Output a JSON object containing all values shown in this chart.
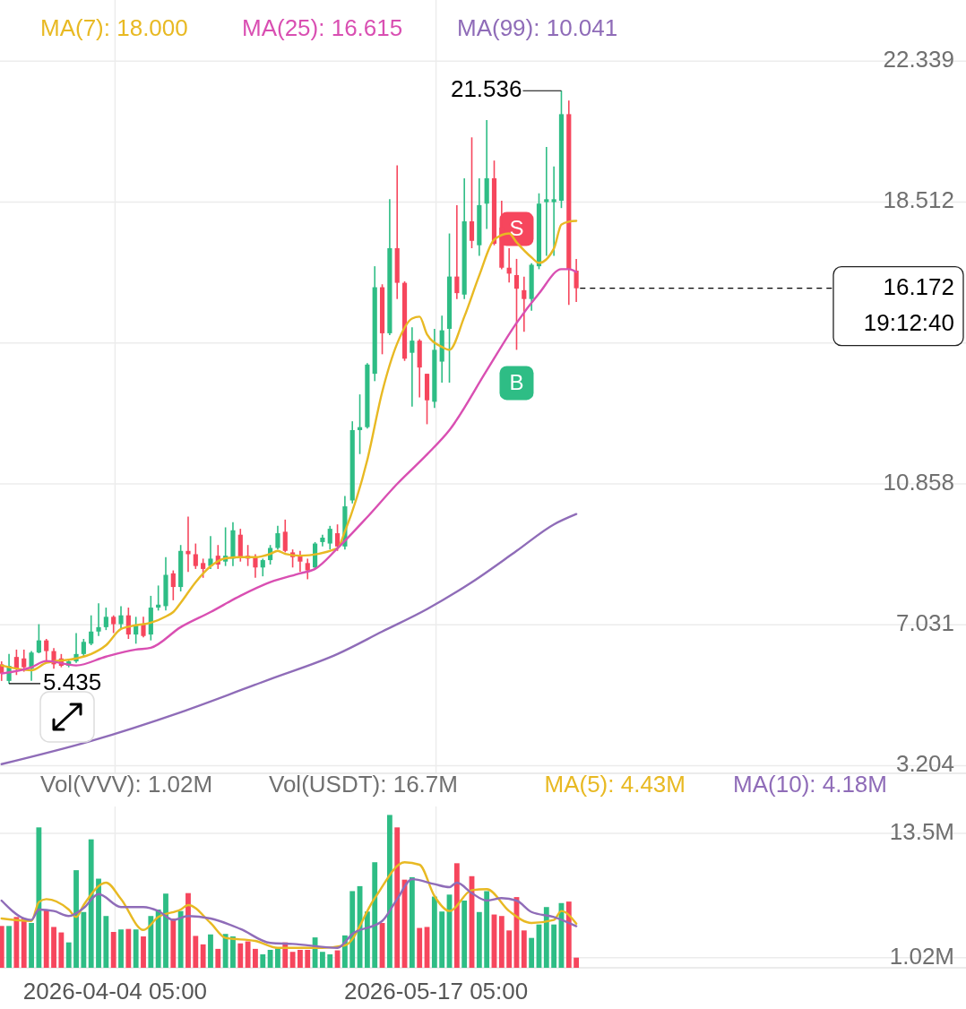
{
  "chart_data": [
    {
      "type": "candlestick",
      "x": [
        "2026-03-20",
        "2026-03-21",
        "2026-03-22",
        "2026-03-23",
        "2026-03-24",
        "2026-03-25",
        "2026-03-26",
        "2026-03-27",
        "2026-03-28",
        "2026-03-29",
        "2026-03-30",
        "2026-03-31",
        "2026-04-01",
        "2026-04-02",
        "2026-04-03",
        "2026-04-04",
        "2026-04-05",
        "2026-04-06",
        "2026-04-07",
        "2026-04-08",
        "2026-04-09",
        "2026-04-10",
        "2026-04-11",
        "2026-04-12",
        "2026-04-13",
        "2026-04-14",
        "2026-04-15",
        "2026-04-16",
        "2026-04-17",
        "2026-04-18",
        "2026-04-19",
        "2026-04-20",
        "2026-04-21",
        "2026-04-22",
        "2026-04-23",
        "2026-04-24",
        "2026-04-25",
        "2026-04-26",
        "2026-04-27",
        "2026-04-28",
        "2026-04-29",
        "2026-04-30",
        "2026-05-01",
        "2026-05-02",
        "2026-05-03",
        "2026-05-04",
        "2026-05-05",
        "2026-05-06",
        "2026-05-07",
        "2026-05-08",
        "2026-05-09",
        "2026-05-10",
        "2026-05-11",
        "2026-05-12",
        "2026-05-13",
        "2026-05-14",
        "2026-05-15",
        "2026-05-16",
        "2026-05-17",
        "2026-05-18",
        "2026-05-19",
        "2026-05-20",
        "2026-05-21",
        "2026-05-22",
        "2026-05-23",
        "2026-05-24",
        "2026-05-25",
        "2026-05-26",
        "2026-05-27",
        "2026-05-28",
        "2026-05-29",
        "2026-05-30",
        "2026-05-31",
        "2026-06-01",
        "2026-06-02",
        "2026-06-03",
        "2026-06-04",
        "2026-06-05"
      ],
      "ohlc": [
        [
          5.96,
          6.04,
          5.51,
          5.71
        ],
        [
          5.51,
          6.24,
          5.435,
          5.92
        ],
        [
          6.16,
          6.36,
          5.67,
          5.84
        ],
        [
          6.12,
          6.36,
          5.76,
          5.88
        ],
        [
          5.84,
          6.32,
          5.51,
          6.28
        ],
        [
          6.28,
          7.05,
          6.26,
          6.61
        ],
        [
          6.61,
          6.65,
          6.0,
          6.32
        ],
        [
          6.32,
          6.4,
          5.84,
          5.96
        ],
        [
          6.12,
          6.24,
          5.88,
          5.92
        ],
        [
          5.92,
          6.08,
          5.88,
          6.04
        ],
        [
          6.04,
          6.81,
          6.0,
          6.24
        ],
        [
          6.24,
          6.65,
          6.16,
          6.57
        ],
        [
          6.52,
          7.29,
          6.48,
          6.85
        ],
        [
          6.85,
          7.62,
          6.73,
          6.97
        ],
        [
          6.97,
          7.5,
          6.89,
          7.25
        ],
        [
          7.25,
          7.29,
          6.81,
          7.05
        ],
        [
          7.05,
          7.54,
          6.93,
          7.29
        ],
        [
          7.29,
          7.5,
          6.65,
          6.77
        ],
        [
          6.77,
          7.25,
          6.52,
          7.01
        ],
        [
          7.05,
          7.25,
          6.69,
          6.73
        ],
        [
          6.77,
          7.82,
          6.61,
          7.5
        ],
        [
          7.5,
          8.1,
          7.42,
          7.58
        ],
        [
          7.54,
          8.87,
          7.42,
          8.39
        ],
        [
          8.43,
          8.51,
          7.7,
          8.06
        ],
        [
          8.06,
          9.2,
          7.94,
          9.04
        ],
        [
          9.04,
          9.97,
          8.47,
          8.95
        ],
        [
          8.95,
          9.24,
          8.55,
          8.63
        ],
        [
          8.71,
          8.83,
          8.31,
          8.55
        ],
        [
          8.63,
          9.44,
          8.55,
          8.83
        ],
        [
          8.91,
          9.2,
          8.55,
          8.67
        ],
        [
          8.75,
          9.68,
          8.63,
          8.91
        ],
        [
          8.83,
          9.82,
          8.63,
          9.6
        ],
        [
          9.48,
          9.64,
          8.75,
          8.87
        ],
        [
          8.91,
          9.2,
          8.63,
          8.83
        ],
        [
          8.87,
          8.95,
          8.31,
          8.59
        ],
        [
          8.59,
          8.83,
          8.35,
          8.79
        ],
        [
          8.79,
          9.2,
          8.67,
          9.12
        ],
        [
          9.12,
          9.72,
          9.08,
          9.52
        ],
        [
          9.56,
          9.89,
          9.0,
          9.04
        ],
        [
          9.0,
          9.08,
          8.59,
          8.87
        ],
        [
          8.91,
          9.04,
          8.47,
          8.75
        ],
        [
          8.71,
          8.83,
          8.27,
          8.51
        ],
        [
          8.59,
          9.28,
          8.55,
          9.24
        ],
        [
          9.28,
          9.48,
          9.16,
          9.4
        ],
        [
          9.24,
          9.72,
          9.08,
          9.64
        ],
        [
          9.52,
          9.76,
          9.04,
          9.16
        ],
        [
          9.16,
          10.53,
          9.08,
          10.25
        ],
        [
          10.41,
          12.56,
          10.33,
          12.32
        ],
        [
          12.32,
          13.29,
          11.67,
          12.4
        ],
        [
          12.4,
          14.14,
          12.36,
          14.1
        ],
        [
          13.85,
          16.77,
          13.65,
          16.2
        ],
        [
          16.2,
          16.28,
          14.38,
          14.95
        ],
        [
          14.95,
          18.59,
          14.9,
          17.26
        ],
        [
          17.26,
          19.51,
          15.88,
          16.32
        ],
        [
          16.32,
          16.36,
          14.2,
          14.26
        ],
        [
          14.42,
          15.11,
          12.96,
          14.75
        ],
        [
          14.75,
          14.79,
          13.21,
          14.02
        ],
        [
          13.85,
          13.85,
          12.48,
          13.13
        ],
        [
          13.09,
          15.07,
          12.92,
          14.5
        ],
        [
          14.18,
          15.43,
          13.61,
          15.03
        ],
        [
          15.07,
          17.66,
          13.61,
          16.49
        ],
        [
          16.49,
          18.43,
          15.88,
          16.04
        ],
        [
          16.0,
          19.16,
          15.88,
          17.99
        ],
        [
          17.99,
          20.27,
          17.26,
          17.46
        ],
        [
          17.34,
          19.16,
          17.05,
          18.43
        ],
        [
          18.47,
          20.74,
          17.78,
          19.16
        ],
        [
          19.16,
          19.64,
          17.34,
          17.38
        ],
        [
          17.82,
          18.55,
          16.69,
          16.73
        ],
        [
          16.73,
          17.26,
          16.33,
          16.57
        ],
        [
          16.53,
          16.97,
          14.5,
          16.16
        ],
        [
          16.12,
          16.49,
          14.99,
          15.88
        ],
        [
          15.88,
          16.85,
          15.56,
          16.81
        ],
        [
          16.77,
          18.75,
          16.69,
          18.47
        ],
        [
          18.51,
          20.01,
          17.05,
          18.59
        ],
        [
          18.51,
          19.48,
          17.05,
          18.59
        ],
        [
          18.55,
          21.536,
          18.35,
          20.9
        ],
        [
          20.9,
          21.27,
          15.72,
          16.69
        ],
        [
          16.65,
          16.97,
          15.8,
          16.172
        ]
      ],
      "colors": [
        "#f6465d",
        "#2ebd85",
        "#f6465d",
        "#f6465d",
        "#2ebd85",
        "#2ebd85",
        "#f6465d",
        "#f6465d",
        "#f6465d",
        "#2ebd85",
        "#2ebd85",
        "#2ebd85",
        "#2ebd85",
        "#2ebd85",
        "#2ebd85",
        "#f6465d",
        "#2ebd85",
        "#f6465d",
        "#2ebd85",
        "#f6465d",
        "#2ebd85",
        "#2ebd85",
        "#2ebd85",
        "#f6465d",
        "#2ebd85",
        "#f6465d",
        "#f6465d",
        "#f6465d",
        "#2ebd85",
        "#f6465d",
        "#2ebd85",
        "#2ebd85",
        "#f6465d",
        "#f6465d",
        "#f6465d",
        "#2ebd85",
        "#2ebd85",
        "#2ebd85",
        "#f6465d",
        "#f6465d",
        "#f6465d",
        "#f6465d",
        "#2ebd85",
        "#2ebd85",
        "#2ebd85",
        "#f6465d",
        "#2ebd85",
        "#2ebd85",
        "#2ebd85",
        "#2ebd85",
        "#2ebd85",
        "#f6465d",
        "#2ebd85",
        "#f6465d",
        "#f6465d",
        "#2ebd85",
        "#f6465d",
        "#f6465d",
        "#2ebd85",
        "#2ebd85",
        "#2ebd85",
        "#f6465d",
        "#2ebd85",
        "#f6465d",
        "#2ebd85",
        "#2ebd85",
        "#f6465d",
        "#f6465d",
        "#f6465d",
        "#f6465d",
        "#f6465d",
        "#2ebd85",
        "#2ebd85",
        "#2ebd85",
        "#2ebd85",
        "#2ebd85",
        "#f6465d",
        "#f6465d"
      ],
      "series": [
        {
          "type": "line",
          "name": "MA(7): 18.000",
          "color": "#e8b923",
          "x": [
            "2026-03-20",
            "2026-03-24",
            "2026-03-26",
            "2026-03-30",
            "2026-04-01",
            "2026-04-03",
            "2026-04-05",
            "2026-04-07",
            "2026-04-09",
            "2026-04-11",
            "2026-04-12",
            "2026-04-13",
            "2026-04-15",
            "2026-04-17",
            "2026-04-19",
            "2026-04-21",
            "2026-04-23",
            "2026-04-25",
            "2026-04-26",
            "2026-04-27",
            "2026-04-29",
            "2026-05-04",
            "2026-05-05",
            "2026-05-08",
            "2026-05-10",
            "2026-05-12",
            "2026-05-14",
            "2026-05-15",
            "2026-05-16",
            "2026-05-18",
            "2026-05-19",
            "2026-05-21",
            "2026-05-23",
            "2026-05-25",
            "2026-05-27",
            "2026-05-28",
            "2026-05-30",
            "2026-05-31",
            "2026-06-02",
            "2026-06-03",
            "2026-06-04",
            "2026-06-05"
          ],
          "values": [
            5.93,
            5.8,
            6.0,
            6.12,
            6.24,
            6.48,
            6.92,
            7.02,
            7.09,
            7.26,
            7.38,
            7.63,
            8.19,
            8.62,
            8.84,
            8.87,
            8.87,
            8.96,
            9.04,
            8.96,
            8.91,
            9.11,
            9.57,
            11.51,
            13.36,
            14.67,
            15.35,
            15.4,
            14.92,
            14.58,
            14.5,
            15.4,
            16.52,
            17.49,
            17.66,
            17.42,
            17.01,
            16.86,
            17.25,
            17.9,
            17.98,
            18.0
          ]
        },
        {
          "type": "line",
          "name": "MA(25): 16.615",
          "color": "#d94fb2",
          "x": [
            "2026-03-20",
            "2026-03-24",
            "2026-03-26",
            "2026-03-30",
            "2026-04-03",
            "2026-04-07",
            "2026-04-09",
            "2026-04-13",
            "2026-04-17",
            "2026-04-21",
            "2026-04-25",
            "2026-04-29",
            "2026-05-01",
            "2026-05-04",
            "2026-05-08",
            "2026-05-12",
            "2026-05-16",
            "2026-05-19",
            "2026-05-24",
            "2026-05-28",
            "2026-05-31",
            "2026-06-03",
            "2026-06-04",
            "2026-06-05"
          ],
          "values": [
            5.71,
            5.88,
            6.05,
            5.93,
            6.17,
            6.36,
            6.41,
            6.97,
            7.38,
            7.82,
            8.19,
            8.43,
            8.55,
            9.11,
            9.96,
            10.86,
            11.66,
            12.32,
            13.94,
            15.23,
            16.03,
            16.69,
            16.69,
            16.615
          ]
        },
        {
          "type": "line",
          "name": "MA(99): 10.041",
          "color": "#8f6cb8",
          "x": [
            "2026-03-20",
            "2026-04-01",
            "2026-04-13",
            "2026-04-25",
            "2026-05-04",
            "2026-05-10",
            "2026-05-16",
            "2026-05-22",
            "2026-05-28",
            "2026-06-02",
            "2026-06-05"
          ],
          "values": [
            3.25,
            3.88,
            4.66,
            5.56,
            6.24,
            6.85,
            7.46,
            8.19,
            9.04,
            9.76,
            10.041
          ]
        }
      ],
      "xlim": [
        "2026-03-19T19:00",
        "2026-07-27T05:00"
      ],
      "ylim": [
        3.0,
        24.0
      ],
      "yticks": [
        3.204,
        7.031,
        10.858,
        {
          "value": 14.685,
          "label": null
        },
        18.512,
        22.339
      ],
      "xticks": [
        {
          "value": "2026-04-04T05:00",
          "label": null
        },
        {
          "value": "2026-05-17T05:00",
          "label": null
        }
      ],
      "tick_labels": "y",
      "grid": true,
      "legend": "top left",
      "ref_lines": [
        {
          "axis": "y",
          "value": 16.172,
          "label": "16.172",
          "line_style": "dashed",
          "color": "#000000"
        }
      ],
      "annotations": [
        {
          "text": "21.536",
          "x": "2026-06-03",
          "y": 21.536
        },
        {
          "text": "5.435",
          "x": "2026-03-21",
          "y": 5.435
        },
        {
          "text": "S",
          "x": "2026-05-28",
          "y": 17.78
        },
        {
          "text": "B",
          "x": "2026-05-28",
          "y": 13.6
        },
        "19:12:40"
      ]
    },
    {
      "type": "bar",
      "x": [
        "2026-03-20",
        "2026-03-21",
        "2026-03-22",
        "2026-03-23",
        "2026-03-24",
        "2026-03-25",
        "2026-03-26",
        "2026-03-27",
        "2026-03-28",
        "2026-03-29",
        "2026-03-30",
        "2026-03-31",
        "2026-04-01",
        "2026-04-02",
        "2026-04-03",
        "2026-04-04",
        "2026-04-05",
        "2026-04-06",
        "2026-04-07",
        "2026-04-08",
        "2026-04-09",
        "2026-04-10",
        "2026-04-11",
        "2026-04-12",
        "2026-04-13",
        "2026-04-14",
        "2026-04-15",
        "2026-04-16",
        "2026-04-17",
        "2026-04-18",
        "2026-04-19",
        "2026-04-20",
        "2026-04-21",
        "2026-04-22",
        "2026-04-23",
        "2026-04-24",
        "2026-04-25",
        "2026-04-26",
        "2026-04-27",
        "2026-04-28",
        "2026-04-29",
        "2026-04-30",
        "2026-05-01",
        "2026-05-02",
        "2026-05-03",
        "2026-05-04",
        "2026-05-05",
        "2026-05-06",
        "2026-05-07",
        "2026-05-08",
        "2026-05-09",
        "2026-05-10",
        "2026-05-11",
        "2026-05-12",
        "2026-05-13",
        "2026-05-14",
        "2026-05-15",
        "2026-05-16",
        "2026-05-17",
        "2026-05-18",
        "2026-05-19",
        "2026-05-20",
        "2026-05-21",
        "2026-05-22",
        "2026-05-23",
        "2026-05-24",
        "2026-05-25",
        "2026-05-26",
        "2026-05-27",
        "2026-05-28",
        "2026-05-29",
        "2026-05-30",
        "2026-05-31",
        "2026-06-01",
        "2026-06-02",
        "2026-06-03",
        "2026-06-04",
        "2026-06-05"
      ],
      "values": [
        4.2,
        4.2,
        5.1,
        4.95,
        4.5,
        14.1,
        5.85,
        4.1,
        3.55,
        2.55,
        9.8,
        5.6,
        12.9,
        8.95,
        5.2,
        3.6,
        3.85,
        3.9,
        3.85,
        3.15,
        5.2,
        5.85,
        7.45,
        4.95,
        5.7,
        7.5,
        3.2,
        2.35,
        3.35,
        1.9,
        3.4,
        3.15,
        2.45,
        2.65,
        1.9,
        1.35,
        1.8,
        1.95,
        2.55,
        1.6,
        1.8,
        1.8,
        3.05,
        1.6,
        1.35,
        1.75,
        3.25,
        7.7,
        8.2,
        5.65,
        10.6,
        4.5,
        15.35,
        14.1,
        8.85,
        9.1,
        4.0,
        4.1,
        7.15,
        5.65,
        7.35,
        10.5,
        6.75,
        9.2,
        5.6,
        7.7,
        5.35,
        5.2,
        3.75,
        7.1,
        3.75,
        3.0,
        4.35,
        6.1,
        4.35,
        6.5,
        6.65,
        1.02
      ],
      "colors": [
        "#f6465d",
        "#2ebd85",
        "#f6465d",
        "#f6465d",
        "#2ebd85",
        "#2ebd85",
        "#f6465d",
        "#f6465d",
        "#f6465d",
        "#2ebd85",
        "#2ebd85",
        "#2ebd85",
        "#2ebd85",
        "#2ebd85",
        "#2ebd85",
        "#f6465d",
        "#2ebd85",
        "#f6465d",
        "#2ebd85",
        "#f6465d",
        "#2ebd85",
        "#2ebd85",
        "#2ebd85",
        "#f6465d",
        "#2ebd85",
        "#f6465d",
        "#f6465d",
        "#f6465d",
        "#2ebd85",
        "#f6465d",
        "#2ebd85",
        "#2ebd85",
        "#f6465d",
        "#f6465d",
        "#f6465d",
        "#2ebd85",
        "#2ebd85",
        "#2ebd85",
        "#f6465d",
        "#f6465d",
        "#f6465d",
        "#f6465d",
        "#2ebd85",
        "#2ebd85",
        "#2ebd85",
        "#f6465d",
        "#2ebd85",
        "#2ebd85",
        "#2ebd85",
        "#2ebd85",
        "#2ebd85",
        "#f6465d",
        "#2ebd85",
        "#f6465d",
        "#f6465d",
        "#2ebd85",
        "#f6465d",
        "#f6465d",
        "#2ebd85",
        "#2ebd85",
        "#2ebd85",
        "#f6465d",
        "#2ebd85",
        "#f6465d",
        "#2ebd85",
        "#2ebd85",
        "#f6465d",
        "#f6465d",
        "#f6465d",
        "#f6465d",
        "#f6465d",
        "#2ebd85",
        "#2ebd85",
        "#2ebd85",
        "#2ebd85",
        "#2ebd85",
        "#f6465d",
        "#f6465d"
      ],
      "series": [
        {
          "type": "line",
          "name": "MA(5): 4.43M",
          "color": "#e8b923",
          "x": [
            "2026-03-20",
            "2026-03-24",
            "2026-03-25",
            "2026-03-26",
            "2026-03-29",
            "2026-03-30",
            "2026-03-31",
            "2026-04-03",
            "2026-04-05",
            "2026-04-08",
            "2026-04-10",
            "2026-04-13",
            "2026-04-14",
            "2026-04-17",
            "2026-04-19",
            "2026-04-23",
            "2026-04-26",
            "2026-04-28",
            "2026-05-02",
            "2026-05-05",
            "2026-05-09",
            "2026-05-13",
            "2026-05-15",
            "2026-05-17",
            "2026-05-19",
            "2026-05-22",
            "2026-05-24",
            "2026-05-27",
            "2026-05-30",
            "2026-06-02",
            "2026-06-03",
            "2026-06-05"
          ],
          "values": [
            4.95,
            4.7,
            6.6,
            6.9,
            5.85,
            5.1,
            6.3,
            8.55,
            6.9,
            3.8,
            5.1,
            5.85,
            6.3,
            4.5,
            3.0,
            2.7,
            2.0,
            2.0,
            2.0,
            2.25,
            7.0,
            10.6,
            10.35,
            7.2,
            5.7,
            7.8,
            7.9,
            5.7,
            4.5,
            4.8,
            5.7,
            4.43
          ]
        },
        {
          "type": "line",
          "name": "MA(10): 4.18M",
          "color": "#8f6cb8",
          "x": [
            "2026-03-20",
            "2026-03-23",
            "2026-03-24",
            "2026-03-25",
            "2026-03-27",
            "2026-03-29",
            "2026-03-31",
            "2026-04-02",
            "2026-04-05",
            "2026-04-08",
            "2026-04-10",
            "2026-04-12",
            "2026-04-14",
            "2026-04-17",
            "2026-04-21",
            "2026-04-25",
            "2026-04-28",
            "2026-05-04",
            "2026-05-06",
            "2026-05-10",
            "2026-05-12",
            "2026-05-14",
            "2026-05-17",
            "2026-05-19",
            "2026-05-20",
            "2026-05-22",
            "2026-05-24",
            "2026-05-26",
            "2026-05-28",
            "2026-05-30",
            "2026-06-02",
            "2026-06-05"
          ],
          "values": [
            6.75,
            4.95,
            4.8,
            5.85,
            5.7,
            5.2,
            6.0,
            7.4,
            6.1,
            6.1,
            5.7,
            4.8,
            5.2,
            4.95,
            3.9,
            2.5,
            2.4,
            2.0,
            3.4,
            4.7,
            6.9,
            8.9,
            8.4,
            8.1,
            8.55,
            7.5,
            6.75,
            7.0,
            6.75,
            5.6,
            5.1,
            4.18
          ]
        }
      ],
      "xlim": [
        "2026-03-19T19:00",
        "2026-07-27T05:00"
      ],
      "ylim": [
        0,
        16.2
      ],
      "yticks": [
        {
          "value": 1.02,
          "label": "1.02M"
        },
        {
          "value": 13.5,
          "label": "13.5M"
        }
      ],
      "xticks": [
        {
          "value": "2026-04-04T05:00",
          "label": "2026-04-04 05:00"
        },
        {
          "value": "2026-05-17T05:00",
          "label": "2026-05-17 05:00"
        }
      ],
      "grid": true,
      "legend": "top right",
      "annotations": [
        "Vol(VVV): 1.02M",
        "Vol(USDT): 16.7M"
      ]
    }
  ]
}
